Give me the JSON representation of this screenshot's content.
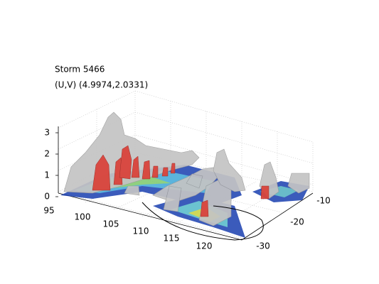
{
  "title": "Storm 5466",
  "subtitle": "(U,V) (4.9974,2.0331)",
  "axes": {
    "x_ticks": [
      95,
      100,
      105,
      110,
      115,
      120
    ],
    "y_ticks": [
      -10,
      -20,
      -30
    ],
    "z_ticks": [
      3,
      2,
      1,
      0
    ]
  }
}
